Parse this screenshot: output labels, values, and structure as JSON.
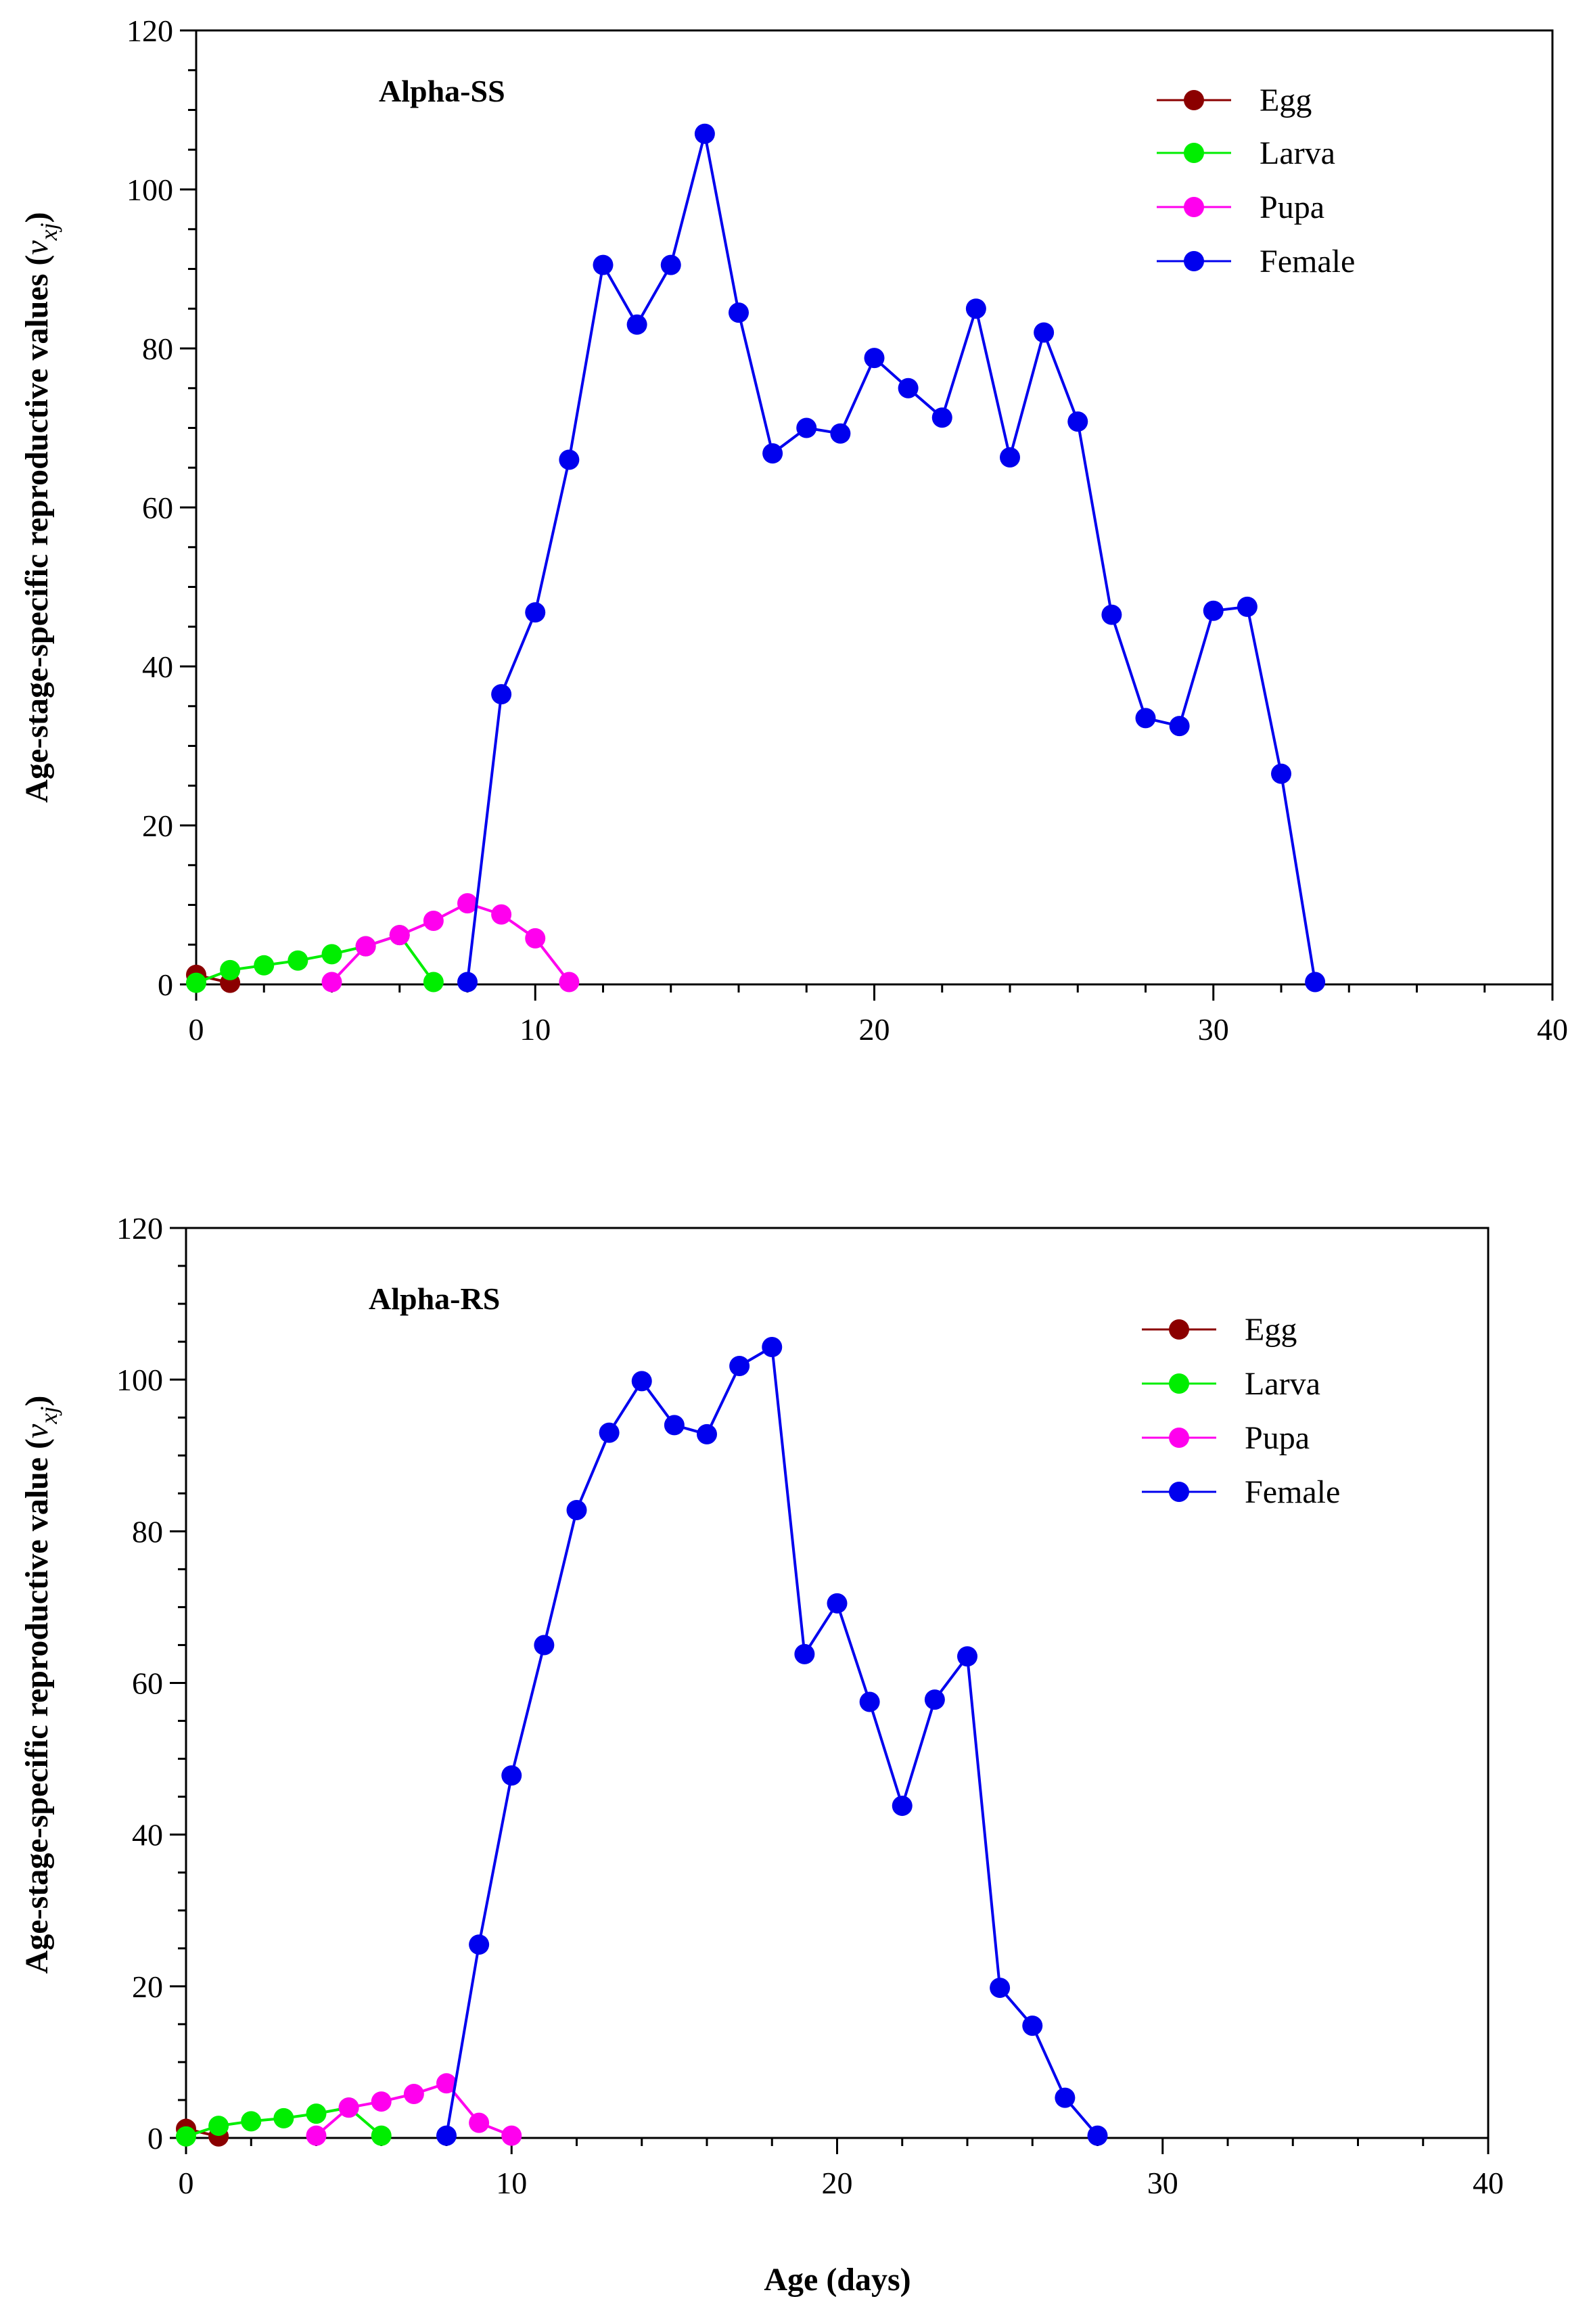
{
  "chart_data": [
    {
      "type": "line",
      "title": "Alpha-SS",
      "xlabel": "",
      "ylabel": "Age-stage-specific reproductive values (",
      "ylabel_symbol": "v",
      "ylabel_subscript": "xj",
      "ylabel_close": ")",
      "xlim": [
        0,
        40
      ],
      "ylim": [
        0,
        120
      ],
      "xticks": [
        "0",
        "10",
        "20",
        "30",
        "40"
      ],
      "yticks": [
        "0",
        "20",
        "40",
        "60",
        "80",
        "100",
        "120"
      ],
      "grid": false,
      "legend_position": "top-right",
      "series": [
        {
          "name": "Egg",
          "color": "#8b0000",
          "x": [
            0,
            1
          ],
          "values": [
            1.2,
            0.2
          ]
        },
        {
          "name": "Larva",
          "color": "#00ee00",
          "x": [
            0,
            1,
            2,
            3,
            4,
            5,
            6,
            7
          ],
          "values": [
            0.2,
            1.8,
            2.4,
            3.0,
            3.8,
            4.8,
            6.2,
            0.3
          ]
        },
        {
          "name": "Pupa",
          "color": "#ff00ee",
          "x": [
            4,
            5,
            6,
            7,
            8,
            9,
            10,
            11
          ],
          "values": [
            0.3,
            4.8,
            6.2,
            8.0,
            10.2,
            8.8,
            5.8,
            0.3
          ]
        },
        {
          "name": "Female",
          "color": "#0000ee",
          "x": [
            8,
            9,
            10,
            11,
            12,
            13,
            14,
            15,
            16,
            17,
            18,
            19,
            20,
            21,
            22,
            23,
            24,
            25,
            26,
            27,
            28,
            29,
            30,
            31,
            32,
            33
          ],
          "values": [
            0.3,
            36.5,
            46.8,
            66.0,
            90.5,
            83.0,
            90.5,
            107.0,
            84.5,
            66.8,
            70.0,
            69.3,
            78.8,
            75.0,
            71.3,
            85.0,
            66.3,
            82.0,
            70.8,
            46.5,
            33.5,
            32.5,
            47.0,
            47.5,
            26.5,
            0.3
          ]
        }
      ]
    },
    {
      "type": "line",
      "title": "Alpha-RS",
      "xlabel": "Age (days)",
      "ylabel": "Age-stage-specific reproductive value (",
      "ylabel_symbol": "v",
      "ylabel_subscript": "xj",
      "ylabel_close": ")",
      "xlim": [
        0,
        40
      ],
      "ylim": [
        0,
        120
      ],
      "xticks": [
        "0",
        "10",
        "20",
        "30",
        "40"
      ],
      "yticks": [
        "0",
        "20",
        "40",
        "60",
        "80",
        "100",
        "120"
      ],
      "grid": false,
      "legend_position": "top-right",
      "series": [
        {
          "name": "Egg",
          "color": "#8b0000",
          "x": [
            0,
            1
          ],
          "values": [
            1.2,
            0.2
          ]
        },
        {
          "name": "Larva",
          "color": "#00ee00",
          "x": [
            0,
            1,
            2,
            3,
            4,
            5,
            6
          ],
          "values": [
            0.2,
            1.6,
            2.2,
            2.6,
            3.2,
            4.0,
            0.3
          ]
        },
        {
          "name": "Pupa",
          "color": "#ff00ee",
          "x": [
            4,
            5,
            6,
            7,
            8,
            9,
            10
          ],
          "values": [
            0.3,
            4.0,
            4.8,
            5.8,
            7.2,
            2.0,
            0.3
          ]
        },
        {
          "name": "Female",
          "color": "#0000ee",
          "x": [
            8,
            9,
            10,
            11,
            12,
            13,
            14,
            15,
            16,
            17,
            18,
            19,
            20,
            21,
            22,
            23,
            24,
            25,
            26,
            27,
            28
          ],
          "values": [
            0.3,
            25.5,
            47.8,
            65.0,
            82.8,
            93.0,
            99.8,
            94.0,
            92.8,
            101.8,
            104.3,
            63.8,
            70.5,
            57.5,
            43.8,
            57.8,
            63.5,
            19.8,
            14.8,
            5.3,
            0.3
          ]
        }
      ]
    }
  ]
}
